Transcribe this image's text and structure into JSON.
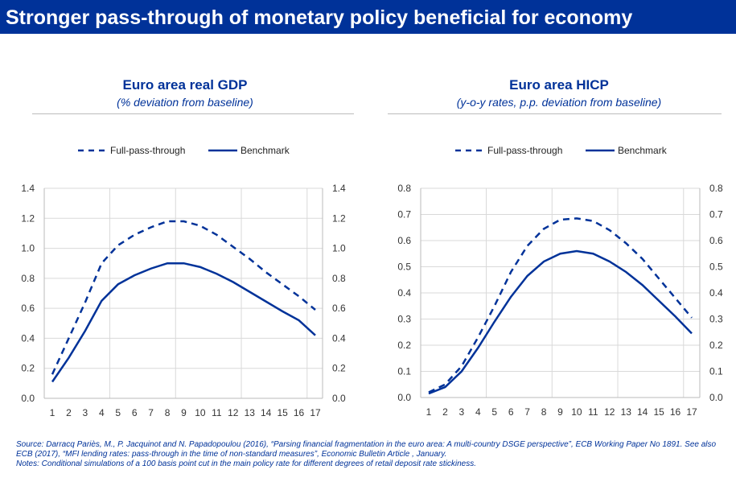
{
  "header": {
    "title": "Stronger pass-through of monetary policy beneficial for economy"
  },
  "colors": {
    "accent": "#003299",
    "grid": "#d9d9d9"
  },
  "chart_data": [
    {
      "type": "line",
      "title": "Euro area real GDP",
      "subtitle": "(% deviation from baseline)",
      "x": [
        1,
        2,
        3,
        4,
        5,
        6,
        7,
        8,
        9,
        10,
        11,
        12,
        13,
        14,
        15,
        16,
        17
      ],
      "xticks": [
        "1",
        "2",
        "3",
        "4",
        "5",
        "6",
        "7",
        "8",
        "9",
        "10",
        "11",
        "12",
        "13",
        "14",
        "15",
        "16",
        "17"
      ],
      "ylim": [
        0,
        1.4
      ],
      "yticks": [
        "0.0",
        "0.2",
        "0.4",
        "0.6",
        "0.8",
        "1.0",
        "1.2",
        "1.4"
      ],
      "dual_y_axis": true,
      "grid": true,
      "legend": "top",
      "series": [
        {
          "name": "Full-pass-through",
          "style": "dashed",
          "values": [
            0.16,
            0.4,
            0.64,
            0.9,
            1.02,
            1.09,
            1.14,
            1.18,
            1.18,
            1.15,
            1.09,
            1.01,
            0.93,
            0.84,
            0.76,
            0.68,
            0.59
          ]
        },
        {
          "name": "Benchmark",
          "style": "solid",
          "values": [
            0.11,
            0.27,
            0.45,
            0.65,
            0.76,
            0.82,
            0.865,
            0.9,
            0.9,
            0.875,
            0.83,
            0.775,
            0.71,
            0.645,
            0.58,
            0.52,
            0.42
          ]
        }
      ]
    },
    {
      "type": "line",
      "title": "Euro area HICP",
      "subtitle": "(y-o-y rates, p.p. deviation from baseline)",
      "x": [
        1,
        2,
        3,
        4,
        5,
        6,
        7,
        8,
        9,
        10,
        11,
        12,
        13,
        14,
        15,
        16,
        17
      ],
      "xticks": [
        "1",
        "2",
        "3",
        "4",
        "5",
        "6",
        "7",
        "8",
        "9",
        "10",
        "11",
        "12",
        "13",
        "14",
        "15",
        "16",
        "17"
      ],
      "ylim": [
        0,
        0.8
      ],
      "yticks": [
        "0.0",
        "0.1",
        "0.2",
        "0.3",
        "0.4",
        "0.5",
        "0.6",
        "0.7",
        "0.8"
      ],
      "dual_y_axis": true,
      "grid": true,
      "legend": "top",
      "series": [
        {
          "name": "Full-pass-through",
          "style": "dashed",
          "values": [
            0.02,
            0.05,
            0.12,
            0.23,
            0.35,
            0.48,
            0.58,
            0.645,
            0.68,
            0.685,
            0.675,
            0.64,
            0.59,
            0.53,
            0.455,
            0.38,
            0.305
          ]
        },
        {
          "name": "Benchmark",
          "style": "solid",
          "values": [
            0.015,
            0.04,
            0.1,
            0.19,
            0.29,
            0.385,
            0.465,
            0.52,
            0.55,
            0.56,
            0.55,
            0.52,
            0.48,
            0.43,
            0.37,
            0.31,
            0.245
          ]
        }
      ]
    }
  ],
  "footer": {
    "source": "Source: Darracq Pariès, M., P. Jacquinot and N. Papadopoulou (2016), “Parsing financial fragmentation in the euro area: A multi-country DSGE perspective”, ECB Working Paper No 1891. See also ECB  (2017), “MFI lending rates: pass-through in the time of non-standard measures”, Economic Bulletin Article , January.",
    "notes": "Notes: Conditional simulations of a 100 basis point cut in the main policy rate for different degrees of retail deposit rate stickiness."
  }
}
